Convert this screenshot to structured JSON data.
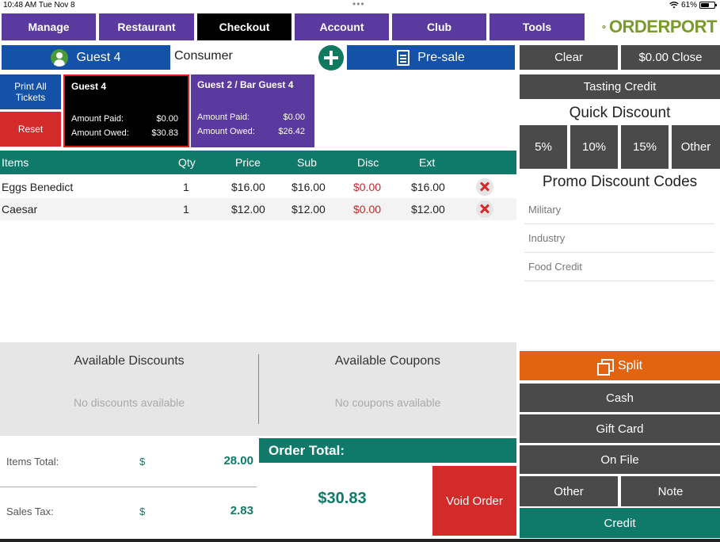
{
  "status_bar": {
    "time": "10:48 AM  Tue Nov 8",
    "dots": "•••",
    "battery": "61%",
    "battery_level": 0.61
  },
  "nav": {
    "items": [
      {
        "label": "Manage",
        "active": false
      },
      {
        "label": "Restaurant",
        "active": false
      },
      {
        "label": "Checkout",
        "active": true
      },
      {
        "label": "Account",
        "active": false
      },
      {
        "label": "Club",
        "active": false
      },
      {
        "label": "Tools",
        "active": false
      }
    ],
    "logo": {
      "prefix": "ORDER",
      "suffix": "PORT"
    }
  },
  "guest_bar": {
    "guest": "Guest 4",
    "customer_type": "Consumer",
    "presale": "Pre-sale"
  },
  "actions": {
    "print_all": "Print All Tickets",
    "reset": "Reset"
  },
  "tickets": [
    {
      "name": "Guest 4",
      "paid_label": "Amount Paid:",
      "paid": "$0.00",
      "owed_label": "Amount Owed:",
      "owed": "$30.83",
      "selected": true
    },
    {
      "name": "Guest 2 / Bar Guest 4",
      "paid_label": "Amount Paid:",
      "paid": "$0.00",
      "owed_label": "Amount Owed:",
      "owed": "$26.42",
      "selected": false
    }
  ],
  "table": {
    "headers": {
      "items": "Items",
      "qty": "Qty",
      "price": "Price",
      "sub": "Sub",
      "disc": "Disc",
      "ext": "Ext"
    },
    "rows": [
      {
        "item": "Eggs Benedict",
        "qty": "1",
        "price": "$16.00",
        "sub": "$16.00",
        "disc": "$0.00",
        "ext": "$16.00"
      },
      {
        "item": "Caesar",
        "qty": "1",
        "price": "$12.00",
        "sub": "$12.00",
        "disc": "$0.00",
        "ext": "$12.00"
      }
    ]
  },
  "right_panel": {
    "clear": "Clear",
    "close": "$0.00 Close",
    "tasting_credit": "Tasting Credit",
    "quick_discount_title": "Quick Discount",
    "quick_discounts": [
      "5%",
      "10%",
      "15%",
      "Other"
    ],
    "promo_title": "Promo Discount Codes",
    "promo_codes": [
      "Military",
      "Industry",
      "Food Credit"
    ]
  },
  "available": {
    "discounts_title": "Available Discounts",
    "discounts_empty": "No discounts available",
    "coupons_title": "Available Coupons",
    "coupons_empty": "No coupons available"
  },
  "totals": {
    "items_label": "Items Total:",
    "items_currency": "$",
    "items_value": "28.00",
    "tax_label": "Sales Tax:",
    "tax_currency": "$",
    "tax_value": "2.83",
    "order_total_label": "Order Total:",
    "order_total_value": "$30.83",
    "void": "Void Order"
  },
  "payments": {
    "split": "Split",
    "cash": "Cash",
    "gift_card": "Gift Card",
    "on_file": "On File",
    "other": "Other",
    "note": "Note",
    "credit": "Credit"
  },
  "colors": {
    "purple": "#5b3aa0",
    "blue": "#1452a8",
    "teal": "#107a6a",
    "red": "#d32a2a",
    "orange": "#e2640e",
    "gray": "#4a4a4a",
    "logo_green": "#7a9a2e"
  }
}
